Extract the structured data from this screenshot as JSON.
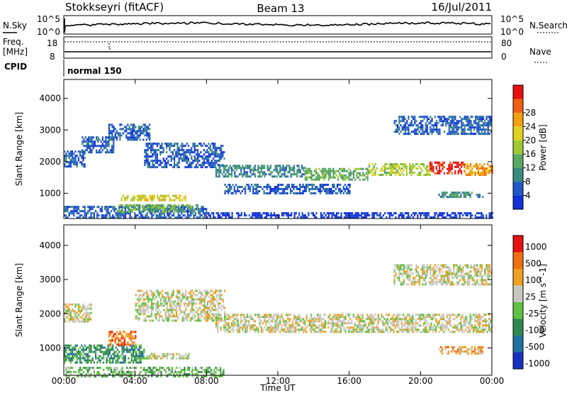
{
  "header": {
    "title": "Stokkseyri (fitACF)",
    "beam": "Beam 13",
    "date": "16/Jul/2011"
  },
  "nsky_panel": {
    "left_label": "N.Sky",
    "right_label": "N.Search",
    "left_ticks": [
      "10^5",
      "10^0"
    ],
    "right_ticks": [
      "10^5",
      "10^0"
    ]
  },
  "freq_panel": {
    "left_label_1": "Freq.",
    "left_label_2": "[MHz]",
    "right_label": "Nave",
    "left_ticks": [
      "18",
      "8"
    ],
    "right_ticks": [
      "80",
      "0"
    ]
  },
  "cpid": {
    "label": "CPID",
    "mode": "normal 150"
  },
  "x_axis": {
    "ticks": [
      "00:00",
      "04:00",
      "08:00",
      "12:00",
      "16:00",
      "20:00",
      "00:00"
    ],
    "label": "Time UT"
  },
  "chart_data": [
    {
      "type": "heatmap",
      "name": "power",
      "ylabel": "Slant Range [km]",
      "y_ticks": [
        "1000",
        "2000",
        "3000",
        "4000"
      ],
      "ylim": [
        200,
        4600
      ],
      "xlim_hours": [
        0,
        24
      ],
      "colorbar_label": "Power [dB]",
      "colorbar_ticks": [
        "4",
        "8",
        "12",
        "16",
        "20",
        "24",
        "28"
      ],
      "colorbar_colors": [
        "#1030d8",
        "#2058c8",
        "#3a8a80",
        "#58a860",
        "#a0c830",
        "#e0d020",
        "#f0a010",
        "#f06010",
        "#e81010"
      ],
      "bands": [
        {
          "x0": 0.0,
          "x1": 1.2,
          "y0": 1850,
          "y1": 2350,
          "level": 1
        },
        {
          "x0": 1.0,
          "x1": 2.8,
          "y0": 2300,
          "y1": 2800,
          "level": 1
        },
        {
          "x0": 2.5,
          "x1": 4.8,
          "y0": 2700,
          "y1": 3200,
          "level": 1
        },
        {
          "x0": 4.5,
          "x1": 9.0,
          "y0": 1800,
          "y1": 2600,
          "level": 1
        },
        {
          "x0": 8.5,
          "x1": 13.5,
          "y0": 1500,
          "y1": 1900,
          "level": 2
        },
        {
          "x0": 13.5,
          "x1": 17.0,
          "y0": 1450,
          "y1": 1800,
          "level": 3
        },
        {
          "x0": 17.0,
          "x1": 20.5,
          "y0": 1600,
          "y1": 1950,
          "level": 4
        },
        {
          "x0": 20.5,
          "x1": 22.5,
          "y0": 1650,
          "y1": 2000,
          "level": 8
        },
        {
          "x0": 22.5,
          "x1": 24.0,
          "y0": 1600,
          "y1": 1950,
          "level": 6
        },
        {
          "x0": 9.0,
          "x1": 16.0,
          "y0": 1000,
          "y1": 1300,
          "level": 1
        },
        {
          "x0": 18.5,
          "x1": 24.0,
          "y0": 2850,
          "y1": 3450,
          "level": 1
        },
        {
          "x0": 0.0,
          "x1": 8.0,
          "y0": 250,
          "y1": 600,
          "level": 1
        },
        {
          "x0": 3.2,
          "x1": 6.8,
          "y0": 750,
          "y1": 950,
          "level": 5
        },
        {
          "x0": 3.0,
          "x1": 7.5,
          "y0": 400,
          "y1": 650,
          "level": 3
        },
        {
          "x0": 8.0,
          "x1": 24.0,
          "y0": 250,
          "y1": 400,
          "level": 0
        },
        {
          "x0": 21.0,
          "x1": 23.5,
          "y0": 850,
          "y1": 1050,
          "level": 2
        }
      ]
    },
    {
      "type": "heatmap",
      "name": "velocity",
      "ylabel": "Slant Range [km]",
      "y_ticks": [
        "1000",
        "2000",
        "3000",
        "4000"
      ],
      "ylim": [
        200,
        4600
      ],
      "xlim_hours": [
        0,
        24
      ],
      "colorbar_label": "Velocity [m s^-1]",
      "colorbar_ticks": [
        "1000",
        "500",
        "100",
        "25",
        "-25",
        "-100",
        "-500",
        "-1000"
      ],
      "colorbar_colors": [
        "#1830c0",
        "#2070a0",
        "#308850",
        "#60c040",
        "#c8c8c0",
        "#f0a020",
        "#f07010",
        "#e81010"
      ],
      "bands": [
        {
          "x0": 0.0,
          "x1": 1.5,
          "y0": 1800,
          "y1": 2300,
          "level": 4
        },
        {
          "x0": 4.0,
          "x1": 9.0,
          "y0": 1800,
          "y1": 2700,
          "level": 4
        },
        {
          "x0": 8.5,
          "x1": 24.0,
          "y0": 1450,
          "y1": 2000,
          "level": 4
        },
        {
          "x0": 18.5,
          "x1": 24.0,
          "y0": 2850,
          "y1": 3450,
          "level": 4
        },
        {
          "x0": 4.0,
          "x1": 7.0,
          "y0": 700,
          "y1": 850,
          "level": 4
        },
        {
          "x0": 0.0,
          "x1": 4.5,
          "y0": 550,
          "y1": 1100,
          "level": 2
        },
        {
          "x0": 0.0,
          "x1": 9.0,
          "y0": 200,
          "y1": 450,
          "level": 3
        },
        {
          "x0": 2.5,
          "x1": 4.0,
          "y0": 1100,
          "y1": 1500,
          "level": 6
        },
        {
          "x0": 21.0,
          "x1": 23.5,
          "y0": 850,
          "y1": 1050,
          "level": 5
        }
      ]
    }
  ]
}
